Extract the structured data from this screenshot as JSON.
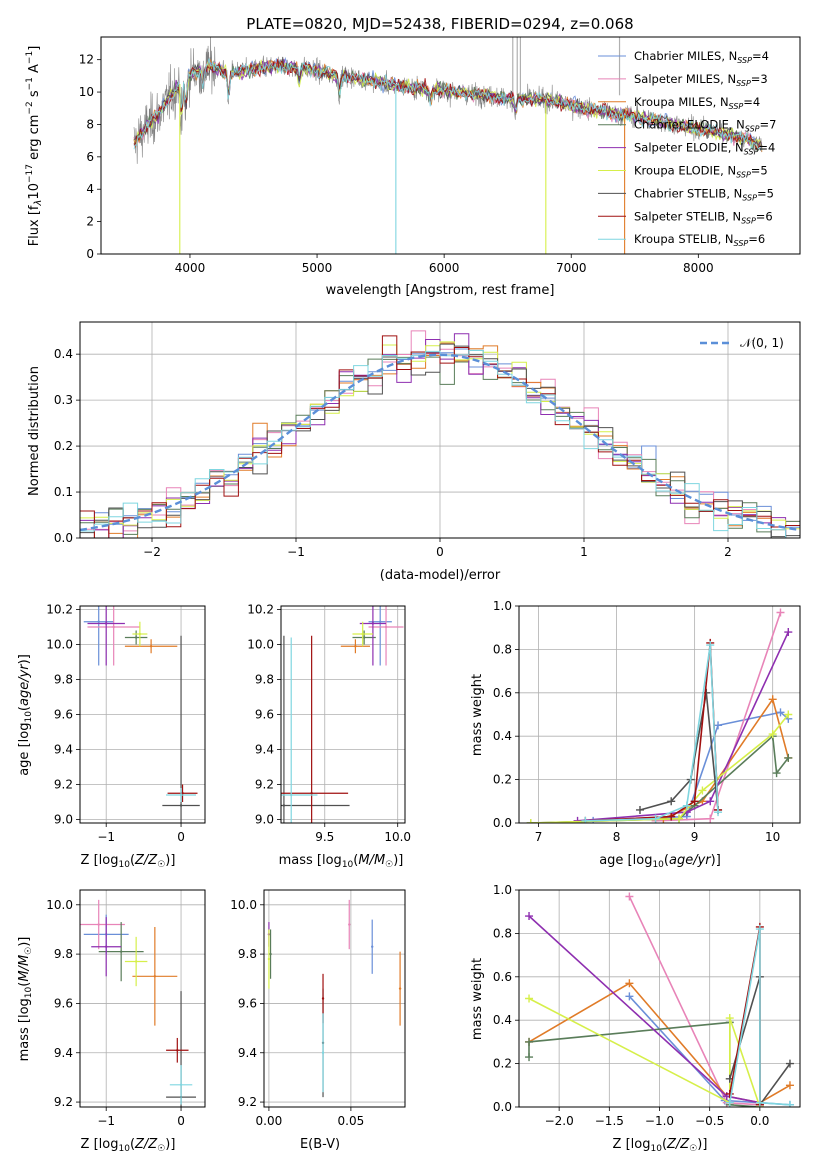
{
  "figure": {
    "title": "PLATE=0820, MJD=52438, FIBERID=0294, z=0.068"
  },
  "colors": {
    "Chabrier MILES": "#6a8fd8",
    "Salpeter MILES": "#e884b8",
    "Kroupa MILES": "#e07b28",
    "Chabrier ELODIE": "#5a7d5a",
    "Salpeter ELODIE": "#8e2fb0",
    "Kroupa ELODIE": "#d6ef4a",
    "Chabrier STELIB": "#505050",
    "Salpeter STELIB": "#a01010",
    "Kroupa STELIB": "#7fd6e0",
    "data": "#808080"
  },
  "chart_data": [
    {
      "id": "spectrum",
      "type": "line",
      "title": "PLATE=0820, MJD=52438, FIBERID=0294, z=0.068",
      "xlabel": "wavelength [Angstrom, rest frame]",
      "ylabel": "Flux [f_λ10^-17 erg cm^-2 s^-1 A^-1]",
      "xlim": [
        3300,
        8800
      ],
      "ylim": [
        0,
        13.4
      ],
      "xticks": [
        4000,
        5000,
        6000,
        7000,
        8000
      ],
      "yticks": [
        0,
        2,
        4,
        6,
        8,
        10,
        12
      ],
      "legend_position": "top-right",
      "legend": [
        {
          "name": "Chabrier MILES",
          "nssp": "4"
        },
        {
          "name": "Salpeter MILES",
          "nssp": "3"
        },
        {
          "name": "Kroupa MILES",
          "nssp": "4"
        },
        {
          "name": "Chabrier ELODIE",
          "nssp": "7"
        },
        {
          "name": "Salpeter ELODIE",
          "nssp": "4"
        },
        {
          "name": "Kroupa ELODIE",
          "nssp": "5"
        },
        {
          "name": "Chabrier STELIB",
          "nssp": "5"
        },
        {
          "name": "Salpeter STELIB",
          "nssp": "6"
        },
        {
          "name": "Kroupa STELIB",
          "nssp": "6"
        }
      ],
      "continuum": [
        [
          3560,
          6.8
        ],
        [
          3650,
          7.8
        ],
        [
          3750,
          8.6
        ],
        [
          3850,
          9.8
        ],
        [
          3950,
          10.8
        ],
        [
          4050,
          11.3
        ],
        [
          4150,
          11.6
        ],
        [
          4300,
          11.2
        ],
        [
          4500,
          11.4
        ],
        [
          4700,
          11.6
        ],
        [
          4900,
          11.5
        ],
        [
          5100,
          11.1
        ],
        [
          5300,
          10.9
        ],
        [
          5500,
          10.6
        ],
        [
          5700,
          10.3
        ],
        [
          5900,
          10.2
        ],
        [
          6100,
          10.0
        ],
        [
          6300,
          9.8
        ],
        [
          6500,
          9.6
        ],
        [
          6700,
          9.6
        ],
        [
          6900,
          9.4
        ],
        [
          7100,
          9.0
        ],
        [
          7300,
          8.7
        ],
        [
          7500,
          8.5
        ],
        [
          7700,
          8.2
        ],
        [
          7900,
          7.9
        ],
        [
          8100,
          7.6
        ],
        [
          8300,
          7.3
        ],
        [
          8400,
          7.0
        ],
        [
          8500,
          6.7
        ]
      ]
    },
    {
      "id": "residuals",
      "type": "step",
      "xlabel": "(data-model)/error",
      "ylabel": "Normed distribution",
      "xlim": [
        -2.5,
        2.5
      ],
      "ylim": [
        0,
        0.47
      ],
      "xticks": [
        -2,
        -1,
        0,
        1,
        2
      ],
      "yticks": [
        0.0,
        0.1,
        0.2,
        0.3,
        0.4
      ],
      "legend": "𝒩(0, 1)",
      "legend_position": "top-right",
      "bin_width": 0.1
    },
    {
      "id": "age_vs_Z",
      "type": "errorbar",
      "xlabel": "Z [log₁₀(Z/Z☉)]",
      "ylabel": "age  [log₁₀(age/yr)]",
      "xlim": [
        -1.35,
        0.32
      ],
      "ylim": [
        8.98,
        10.22
      ],
      "xticks": [
        -1,
        0
      ],
      "yticks": [
        9.0,
        9.2,
        9.4,
        9.6,
        9.8,
        10.0,
        10.2
      ],
      "points": [
        {
          "model": "Chabrier MILES",
          "x": -1.1,
          "y": 10.13,
          "xerr": 0.2,
          "yerr": 0.25
        },
        {
          "model": "Salpeter MILES",
          "x": -0.9,
          "y": 10.1,
          "xerr": 0.35,
          "yerr": 0.22
        },
        {
          "model": "Kroupa MILES",
          "x": -0.4,
          "y": 9.99,
          "xerr": 0.35,
          "yerr": 0.04
        },
        {
          "model": "Chabrier ELODIE",
          "x": -0.6,
          "y": 10.04,
          "xerr": 0.15,
          "yerr": 0.04
        },
        {
          "model": "Salpeter ELODIE",
          "x": -1.0,
          "y": 10.12,
          "xerr": 0.25,
          "yerr": 0.24
        },
        {
          "model": "Kroupa ELODIE",
          "x": -0.55,
          "y": 10.06,
          "xerr": 0.1,
          "yerr": 0.07
        },
        {
          "model": "Chabrier STELIB",
          "x": 0.0,
          "y": 9.08,
          "xerr": 0.25,
          "yerr": 0.97
        },
        {
          "model": "Salpeter STELIB",
          "x": 0.02,
          "y": 9.15,
          "xerr": 0.2,
          "yerr": 0.05
        },
        {
          "model": "Kroupa STELIB",
          "x": 0.0,
          "y": 9.14,
          "xerr": 0.2,
          "yerr": 0.04
        }
      ]
    },
    {
      "id": "age_vs_mass",
      "type": "errorbar",
      "xlabel": "mass [log₁₀(M/M☉)]",
      "ylabel": "",
      "xlim": [
        9.2,
        10.05
      ],
      "ylim": [
        8.98,
        10.22
      ],
      "xticks": [
        9.5,
        10.0
      ],
      "yticks": [
        9.0,
        9.2,
        9.4,
        9.6,
        9.8,
        10.0,
        10.2
      ],
      "points": [
        {
          "model": "Chabrier MILES",
          "x": 9.88,
          "y": 10.13,
          "xerr": 0.08,
          "yerr": 0.25
        },
        {
          "model": "Salpeter MILES",
          "x": 9.92,
          "y": 10.1,
          "xerr": 0.12,
          "yerr": 0.22
        },
        {
          "model": "Kroupa MILES",
          "x": 9.71,
          "y": 9.99,
          "xerr": 0.1,
          "yerr": 0.04
        },
        {
          "model": "Chabrier ELODIE",
          "x": 9.77,
          "y": 10.04,
          "xerr": 0.08,
          "yerr": 0.04
        },
        {
          "model": "Salpeter ELODIE",
          "x": 9.83,
          "y": 10.12,
          "xerr": 0.09,
          "yerr": 0.24
        },
        {
          "model": "Kroupa ELODIE",
          "x": 9.76,
          "y": 10.06,
          "xerr": 0.07,
          "yerr": 0.07
        },
        {
          "model": "Chabrier STELIB",
          "x": 9.22,
          "y": 9.08,
          "xerr": 0.45,
          "yerr": 0.97
        },
        {
          "model": "Salpeter STELIB",
          "x": 9.41,
          "y": 9.15,
          "xerr": 0.25,
          "yerr": 0.9
        },
        {
          "model": "Kroupa STELIB",
          "x": 9.27,
          "y": 9.14,
          "xerr": 0.18,
          "yerr": 0.9
        }
      ]
    },
    {
      "id": "mass_weight_vs_age",
      "type": "line",
      "xlabel": "age  [log₁₀(age/yr)]",
      "ylabel": "mass weight",
      "xlim": [
        6.75,
        10.35
      ],
      "ylim": [
        0,
        1.0
      ],
      "xticks": [
        7,
        8,
        9,
        10
      ],
      "yticks": [
        0.0,
        0.2,
        0.4,
        0.6,
        0.8,
        1.0
      ],
      "series": [
        {
          "model": "Chabrier MILES",
          "x": [
            7.7,
            8.9,
            9.3,
            10.1,
            10.2
          ],
          "y": [
            0.01,
            0.03,
            0.45,
            0.51,
            0.48
          ]
        },
        {
          "model": "Salpeter MILES",
          "x": [
            8.5,
            9.2,
            10.1
          ],
          "y": [
            0.01,
            0.02,
            0.97
          ]
        },
        {
          "model": "Kroupa MILES",
          "x": [
            8.6,
            9.1,
            10.0,
            10.2
          ],
          "y": [
            0.02,
            0.1,
            0.57,
            0.3
          ]
        },
        {
          "model": "Chabrier ELODIE",
          "x": [
            6.9,
            8.8,
            9.0,
            10.0,
            10.05,
            10.2
          ],
          "y": [
            0.0,
            0.02,
            0.08,
            0.4,
            0.23,
            0.3
          ]
        },
        {
          "model": "Salpeter ELODIE",
          "x": [
            7.5,
            8.9,
            9.2,
            10.2
          ],
          "y": [
            0.01,
            0.05,
            0.1,
            0.88
          ]
        },
        {
          "model": "Kroupa ELODIE",
          "x": [
            6.9,
            8.8,
            9.1,
            10.0,
            10.2
          ],
          "y": [
            0.0,
            0.02,
            0.15,
            0.41,
            0.5
          ]
        },
        {
          "model": "Chabrier STELIB",
          "x": [
            8.3,
            8.7,
            8.95,
            9.15,
            9.3
          ],
          "y": [
            0.06,
            0.1,
            0.2,
            0.6,
            0.06
          ]
        },
        {
          "model": "Salpeter STELIB",
          "x": [
            7.6,
            8.7,
            9.0,
            9.2,
            9.3
          ],
          "y": [
            0.01,
            0.03,
            0.1,
            0.83,
            0.06
          ]
        },
        {
          "model": "Kroupa STELIB",
          "x": [
            7.6,
            8.5,
            8.9,
            9.2,
            9.3
          ],
          "y": [
            0.01,
            0.02,
            0.08,
            0.82,
            0.05
          ]
        }
      ]
    },
    {
      "id": "mass_vs_Z",
      "type": "errorbar",
      "xlabel": "Z [log₁₀(Z/Z☉)]",
      "ylabel": "mass [log₁₀(M/M☉)]",
      "xlim": [
        -1.35,
        0.32
      ],
      "ylim": [
        9.18,
        10.06
      ],
      "xticks": [
        -1,
        0
      ],
      "yticks": [
        9.2,
        9.4,
        9.6,
        9.8,
        10.0
      ],
      "points": [
        {
          "model": "Chabrier MILES",
          "x": -1.0,
          "y": 9.88,
          "xerr": 0.3,
          "yerr": 0.08
        },
        {
          "model": "Salpeter MILES",
          "x": -1.1,
          "y": 9.92,
          "xerr": 0.35,
          "yerr": 0.1
        },
        {
          "model": "Kroupa MILES",
          "x": -0.35,
          "y": 9.71,
          "xerr": 0.3,
          "yerr": 0.2
        },
        {
          "model": "Chabrier ELODIE",
          "x": -0.8,
          "y": 9.81,
          "xerr": 0.3,
          "yerr": 0.12
        },
        {
          "model": "Salpeter ELODIE",
          "x": -1.0,
          "y": 9.83,
          "xerr": 0.2,
          "yerr": 0.12
        },
        {
          "model": "Kroupa ELODIE",
          "x": -0.6,
          "y": 9.77,
          "xerr": 0.15,
          "yerr": 0.1
        },
        {
          "model": "Chabrier STELIB",
          "x": 0.0,
          "y": 9.22,
          "xerr": 0.2,
          "yerr": 0.43
        },
        {
          "model": "Salpeter STELIB",
          "x": -0.05,
          "y": 9.41,
          "xerr": 0.15,
          "yerr": 0.05
        },
        {
          "model": "Kroupa STELIB",
          "x": 0.0,
          "y": 9.27,
          "xerr": 0.15,
          "yerr": 0.08
        }
      ]
    },
    {
      "id": "mass_vs_EBV",
      "type": "errorbar",
      "xlabel": "E(B-V)",
      "ylabel": "",
      "xlim": [
        -0.003,
        0.083
      ],
      "ylim": [
        9.18,
        10.06
      ],
      "xticks": [
        0.0,
        0.05
      ],
      "yticks": [
        9.2,
        9.4,
        9.6,
        9.8,
        10.0
      ],
      "points": [
        {
          "model": "Chabrier MILES",
          "x": 0.063,
          "y": 9.83,
          "xerr": 0.0,
          "yerr": 0.11
        },
        {
          "model": "Salpeter MILES",
          "x": 0.049,
          "y": 9.92,
          "xerr": 0.0,
          "yerr": 0.1
        },
        {
          "model": "Kroupa MILES",
          "x": 0.08,
          "y": 9.66,
          "xerr": 0.0,
          "yerr": 0.15
        },
        {
          "model": "Chabrier ELODIE",
          "x": 0.001,
          "y": 9.8,
          "xerr": 0.0,
          "yerr": 0.1
        },
        {
          "model": "Salpeter ELODIE",
          "x": 0.0,
          "y": 9.88,
          "xerr": 0.0,
          "yerr": 0.05
        },
        {
          "model": "Kroupa ELODIE",
          "x": 0.0,
          "y": 9.78,
          "xerr": 0.0,
          "yerr": 0.12
        },
        {
          "model": "Chabrier STELIB",
          "x": 0.033,
          "y": 9.44,
          "xerr": 0.0,
          "yerr": 0.22
        },
        {
          "model": "Salpeter STELIB",
          "x": 0.033,
          "y": 9.62,
          "xerr": 0.0,
          "yerr": 0.1
        },
        {
          "model": "Kroupa STELIB",
          "x": 0.033,
          "y": 9.4,
          "xerr": 0.0,
          "yerr": 0.16
        }
      ]
    },
    {
      "id": "mass_weight_vs_Z",
      "type": "line",
      "xlabel": "Z [log₁₀(Z/Z☉)]",
      "ylabel": "mass weight",
      "xlim": [
        -2.4,
        0.4
      ],
      "ylim": [
        0,
        1.0
      ],
      "xticks": [
        -2.0,
        -1.5,
        -1.0,
        -0.5,
        0.0
      ],
      "yticks": [
        0.0,
        0.2,
        0.4,
        0.6,
        0.8,
        1.0
      ],
      "series": [
        {
          "model": "Chabrier MILES",
          "x": [
            -1.3,
            -0.35,
            0.0,
            0.3
          ],
          "y": [
            0.51,
            0.03,
            0.02,
            0.01
          ]
        },
        {
          "model": "Salpeter MILES",
          "x": [
            -1.3,
            -0.33,
            0.0
          ],
          "y": [
            0.97,
            0.02,
            0.01
          ]
        },
        {
          "model": "Kroupa MILES",
          "x": [
            -2.3,
            -1.3,
            -0.33,
            0.0,
            0.3
          ],
          "y": [
            0.3,
            0.57,
            0.05,
            0.02,
            0.1
          ]
        },
        {
          "model": "Chabrier ELODIE",
          "x": [
            -2.3,
            -2.3,
            -0.3,
            -0.3,
            0.0
          ],
          "y": [
            0.23,
            0.3,
            0.39,
            0.01,
            0.0
          ]
        },
        {
          "model": "Salpeter ELODIE",
          "x": [
            -2.3,
            -0.33,
            0.0
          ],
          "y": [
            0.88,
            0.05,
            0.02
          ]
        },
        {
          "model": "Kroupa ELODIE",
          "x": [
            -2.3,
            -0.3,
            -0.3,
            0.0
          ],
          "y": [
            0.5,
            0.02,
            0.41,
            0.0
          ]
        },
        {
          "model": "Chabrier STELIB",
          "x": [
            -0.3,
            0.0,
            0.0,
            0.3
          ],
          "y": [
            0.13,
            0.6,
            0.01,
            0.2
          ]
        },
        {
          "model": "Salpeter STELIB",
          "x": [
            -0.3,
            0.0,
            0.0
          ],
          "y": [
            0.06,
            0.83,
            0.01
          ]
        },
        {
          "model": "Kroupa STELIB",
          "x": [
            -0.3,
            0.0,
            0.0,
            0.3
          ],
          "y": [
            0.02,
            0.82,
            0.02,
            0.01
          ]
        }
      ]
    }
  ]
}
